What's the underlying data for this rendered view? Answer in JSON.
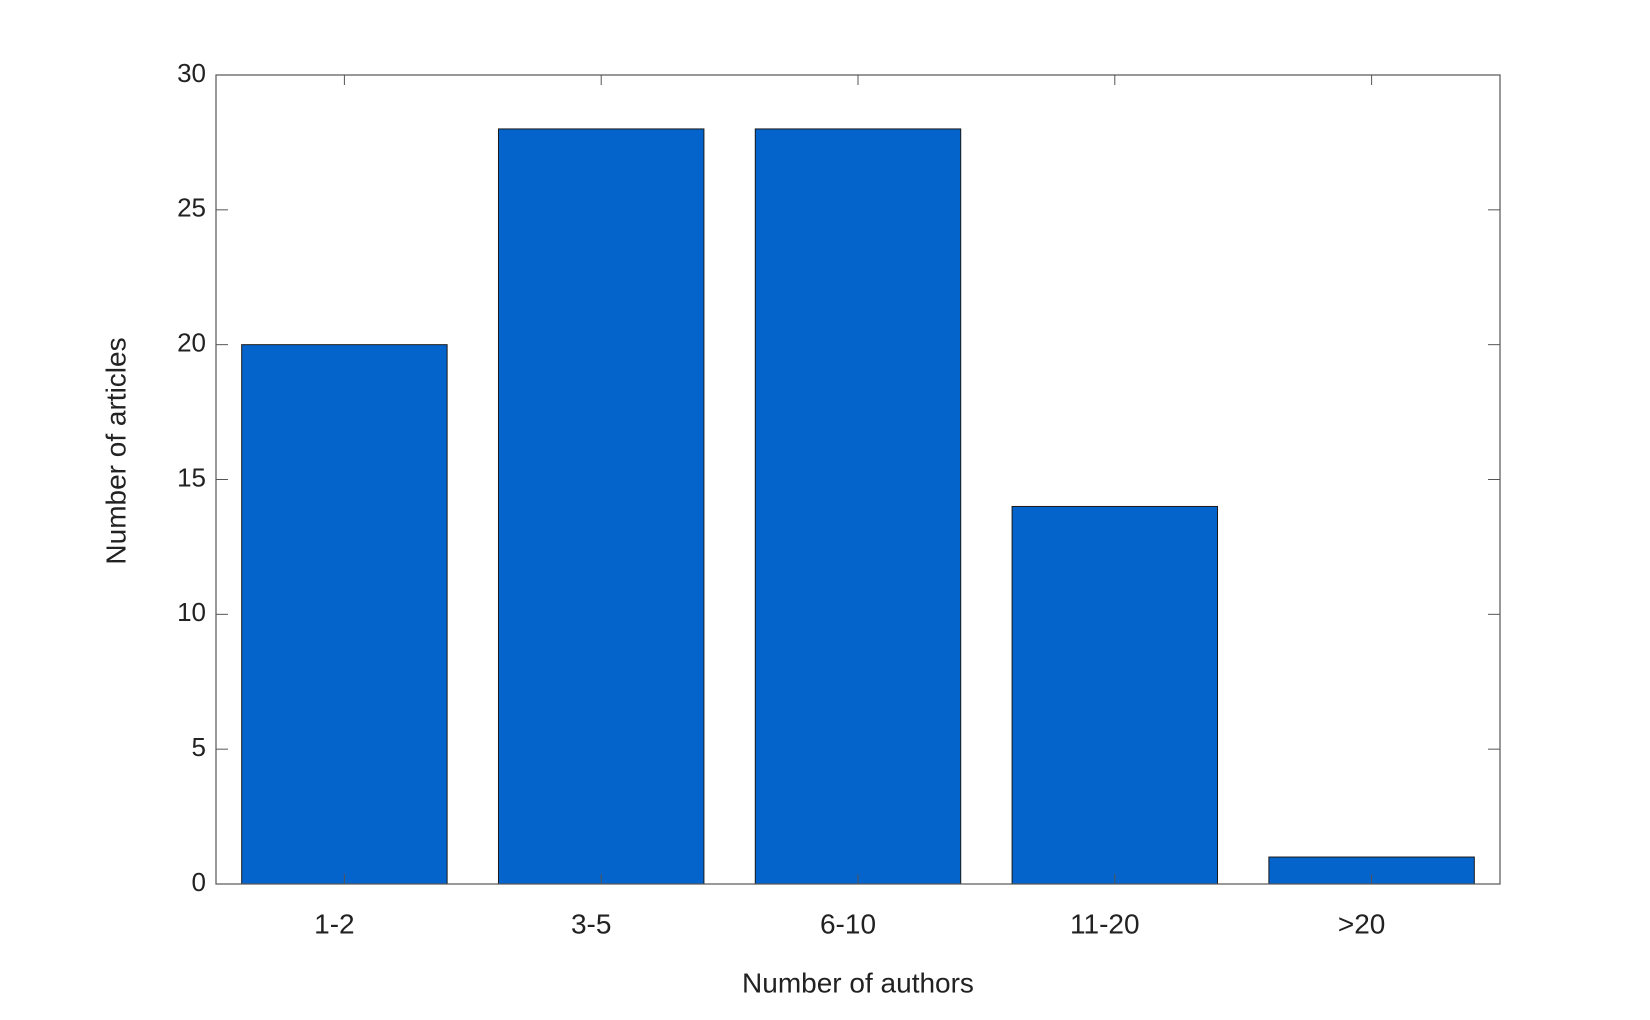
{
  "chart_data": {
    "type": "bar",
    "x_label": "Number of authors",
    "y_label": "Number of articles",
    "categories": [
      "1-2",
      "3-5",
      "6-10",
      "11-20",
      ">20"
    ],
    "values": [
      20,
      28,
      28,
      14,
      1
    ],
    "color": "#0564cb",
    "ylim": [
      0,
      30
    ],
    "yticks": [
      0,
      5,
      10,
      15,
      20,
      25,
      30
    ],
    "grid": false
  }
}
